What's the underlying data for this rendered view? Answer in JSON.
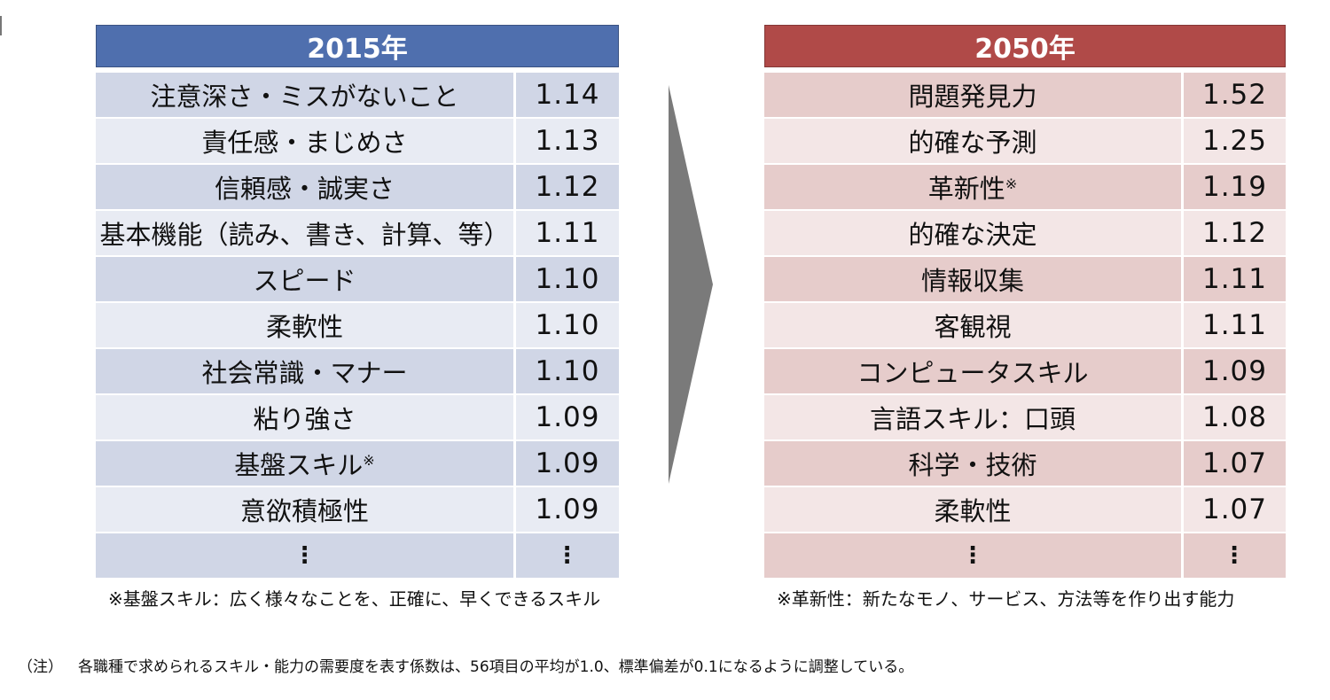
{
  "left_table": {
    "header": "2015年",
    "rows": [
      {
        "label": "注意深さ・ミスがないこと",
        "mark": "",
        "value": "1.14"
      },
      {
        "label": "責任感・まじめさ",
        "mark": "",
        "value": "1.13"
      },
      {
        "label": "信頼感・誠実さ",
        "mark": "",
        "value": "1.12"
      },
      {
        "label": "基本機能（読み、書き、計算、等）",
        "mark": "",
        "value": "1.11"
      },
      {
        "label": "スピード",
        "mark": "",
        "value": "1.10"
      },
      {
        "label": "柔軟性",
        "mark": "",
        "value": "1.10"
      },
      {
        "label": "社会常識・マナー",
        "mark": "",
        "value": "1.10"
      },
      {
        "label": "粘り強さ",
        "mark": "",
        "value": "1.09"
      },
      {
        "label": "基盤スキル",
        "mark": "※",
        "value": "1.09"
      },
      {
        "label": "意欲積極性",
        "mark": "",
        "value": "1.09"
      },
      {
        "label": "⋮",
        "mark": "",
        "value": "⋮"
      }
    ],
    "footnote": "※基盤スキル：広く様々なことを、正確に、早くできるスキル"
  },
  "right_table": {
    "header": "2050年",
    "rows": [
      {
        "label": "問題発見力",
        "mark": "",
        "value": "1.52"
      },
      {
        "label": "的確な予測",
        "mark": "",
        "value": "1.25"
      },
      {
        "label": "革新性",
        "mark": "※",
        "value": "1.19"
      },
      {
        "label": "的確な決定",
        "mark": "",
        "value": "1.12"
      },
      {
        "label": "情報収集",
        "mark": "",
        "value": "1.11"
      },
      {
        "label": "客観視",
        "mark": "",
        "value": "1.11"
      },
      {
        "label": "コンピュータスキル",
        "mark": "",
        "value": "1.09"
      },
      {
        "label": "言語スキル：口頭",
        "mark": "",
        "value": "1.08"
      },
      {
        "label": "科学・技術",
        "mark": "",
        "value": "1.07"
      },
      {
        "label": "柔軟性",
        "mark": "",
        "value": "1.07"
      },
      {
        "label": "⋮",
        "mark": "",
        "value": "⋮"
      }
    ],
    "footnote": "※革新性：新たなモノ、サービス、方法等を作り出す能力"
  },
  "note": {
    "label": "（注）",
    "text": "各職種で求められるスキル・能力の需要度を表す係数は、56項目の平均が1.0、標準偏差が0.1になるように調整している。"
  },
  "colors": {
    "left_header": "#4f6fae",
    "right_header": "#b04a48",
    "arrow": "#7a7a7a"
  }
}
